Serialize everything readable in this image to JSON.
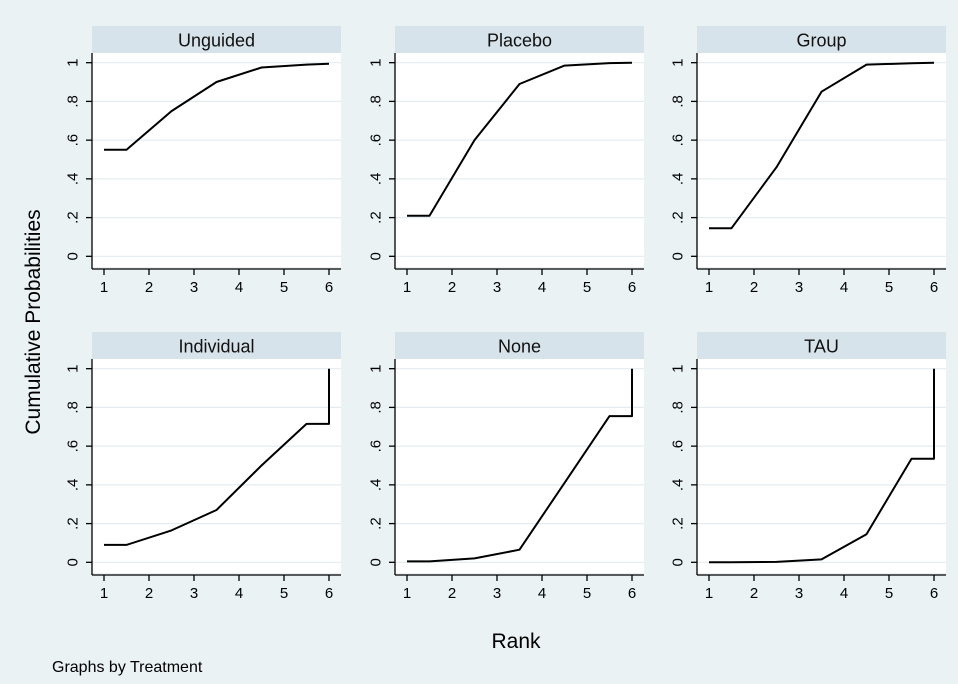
{
  "chart_data": {
    "type": "line",
    "ylabel": "Cumulative Probabilities",
    "xlabel": "Rank",
    "note": "Graphs by Treatment",
    "xticks": [
      "1",
      "2",
      "3",
      "4",
      "5",
      "6"
    ],
    "yticks": [
      "0",
      ".2",
      ".4",
      ".6",
      ".8",
      "1"
    ],
    "xlim": [
      0.8,
      6.2
    ],
    "ylim": [
      -0.05,
      1.05
    ],
    "panels": [
      {
        "title": "Unguided",
        "points": [
          [
            1,
            0.55
          ],
          [
            1.5,
            0.55
          ],
          [
            2.5,
            0.75
          ],
          [
            3.5,
            0.9
          ],
          [
            4.5,
            0.975
          ],
          [
            5.5,
            0.99
          ],
          [
            6,
            0.995
          ]
        ]
      },
      {
        "title": "Placebo",
        "points": [
          [
            1,
            0.21
          ],
          [
            1.5,
            0.21
          ],
          [
            2.5,
            0.6
          ],
          [
            3.5,
            0.89
          ],
          [
            4.5,
            0.985
          ],
          [
            5.5,
            0.998
          ],
          [
            6,
            1.0
          ]
        ]
      },
      {
        "title": "Group",
        "points": [
          [
            1,
            0.145
          ],
          [
            1.5,
            0.145
          ],
          [
            2.5,
            0.46
          ],
          [
            3.5,
            0.85
          ],
          [
            4.5,
            0.99
          ],
          [
            5.5,
            0.997
          ],
          [
            6,
            1.0
          ]
        ]
      },
      {
        "title": "Individual",
        "points": [
          [
            1,
            0.09
          ],
          [
            1.5,
            0.09
          ],
          [
            2.5,
            0.165
          ],
          [
            3.5,
            0.27
          ],
          [
            4.5,
            0.5
          ],
          [
            5.5,
            0.715
          ],
          [
            6,
            0.715
          ],
          [
            6,
            1.0
          ]
        ]
      },
      {
        "title": "None",
        "points": [
          [
            1,
            0.005
          ],
          [
            1.5,
            0.005
          ],
          [
            2.5,
            0.02
          ],
          [
            3.5,
            0.065
          ],
          [
            4.5,
            0.41
          ],
          [
            5.5,
            0.755
          ],
          [
            6,
            0.755
          ],
          [
            6,
            1.0
          ]
        ]
      },
      {
        "title": "TAU",
        "points": [
          [
            1,
            0.0
          ],
          [
            1.5,
            0.0
          ],
          [
            2.5,
            0.002
          ],
          [
            3.5,
            0.015
          ],
          [
            4.5,
            0.145
          ],
          [
            5.5,
            0.535
          ],
          [
            6,
            0.535
          ],
          [
            6,
            1.0
          ]
        ]
      }
    ]
  }
}
